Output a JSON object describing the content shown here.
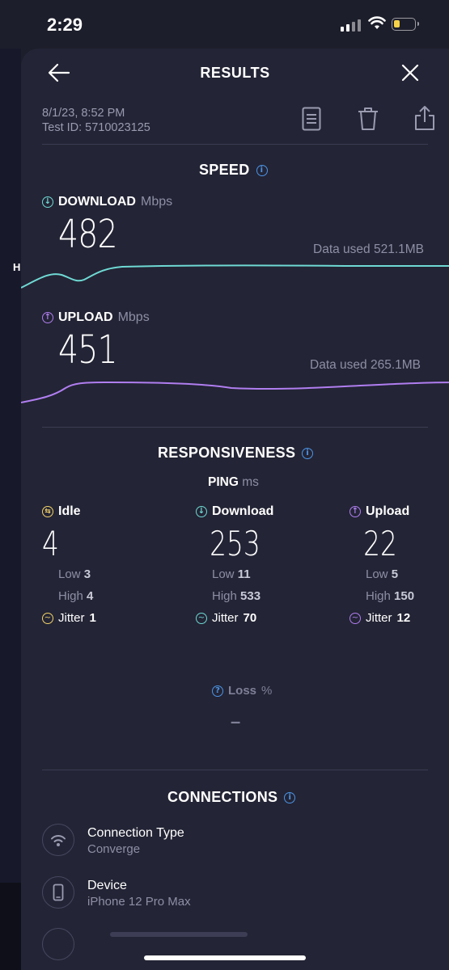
{
  "status_bar": {
    "time": "2:29"
  },
  "header": {
    "title": "RESULTS"
  },
  "meta": {
    "datetime": "8/1/23, 8:52 PM",
    "test_id": "Test ID: 5710023125"
  },
  "side_marker": "H",
  "speed": {
    "title": "SPEED",
    "download": {
      "label": "DOWNLOAD",
      "unit": "Mbps",
      "value": "482",
      "data_used": "Data used 521.1MB"
    },
    "upload": {
      "label": "UPLOAD",
      "unit": "Mbps",
      "value": "451",
      "data_used": "Data used 265.1MB"
    }
  },
  "responsiveness": {
    "title": "RESPONSIVENESS",
    "ping_label": "PING",
    "ping_unit": "ms",
    "columns": [
      {
        "name": "Idle",
        "value": "4",
        "low_label": "Low",
        "low": "3",
        "high_label": "High",
        "high": "4",
        "jitter_label": "Jitter",
        "jitter": "1",
        "color": "#f3d36a"
      },
      {
        "name": "Download",
        "value": "253",
        "low_label": "Low",
        "low": "11",
        "high_label": "High",
        "high": "533",
        "jitter_label": "Jitter",
        "jitter": "70",
        "color": "#6fd9d4"
      },
      {
        "name": "Upload",
        "value": "22",
        "low_label": "Low",
        "low": "5",
        "high_label": "High",
        "high": "150",
        "jitter_label": "Jitter",
        "jitter": "12",
        "color": "#b07ef0"
      }
    ],
    "loss_label": "Loss",
    "loss_unit": "%",
    "loss_value": "–"
  },
  "connections": {
    "title": "CONNECTIONS",
    "items": [
      {
        "label": "Connection Type",
        "value": "Converge",
        "icon": "wifi-icon"
      },
      {
        "label": "Device",
        "value": "iPhone 12 Pro Max",
        "icon": "phone-icon"
      }
    ]
  },
  "colors": {
    "download": "#6fd9d4",
    "upload": "#b07ef0",
    "accent": "#4c95e6"
  }
}
